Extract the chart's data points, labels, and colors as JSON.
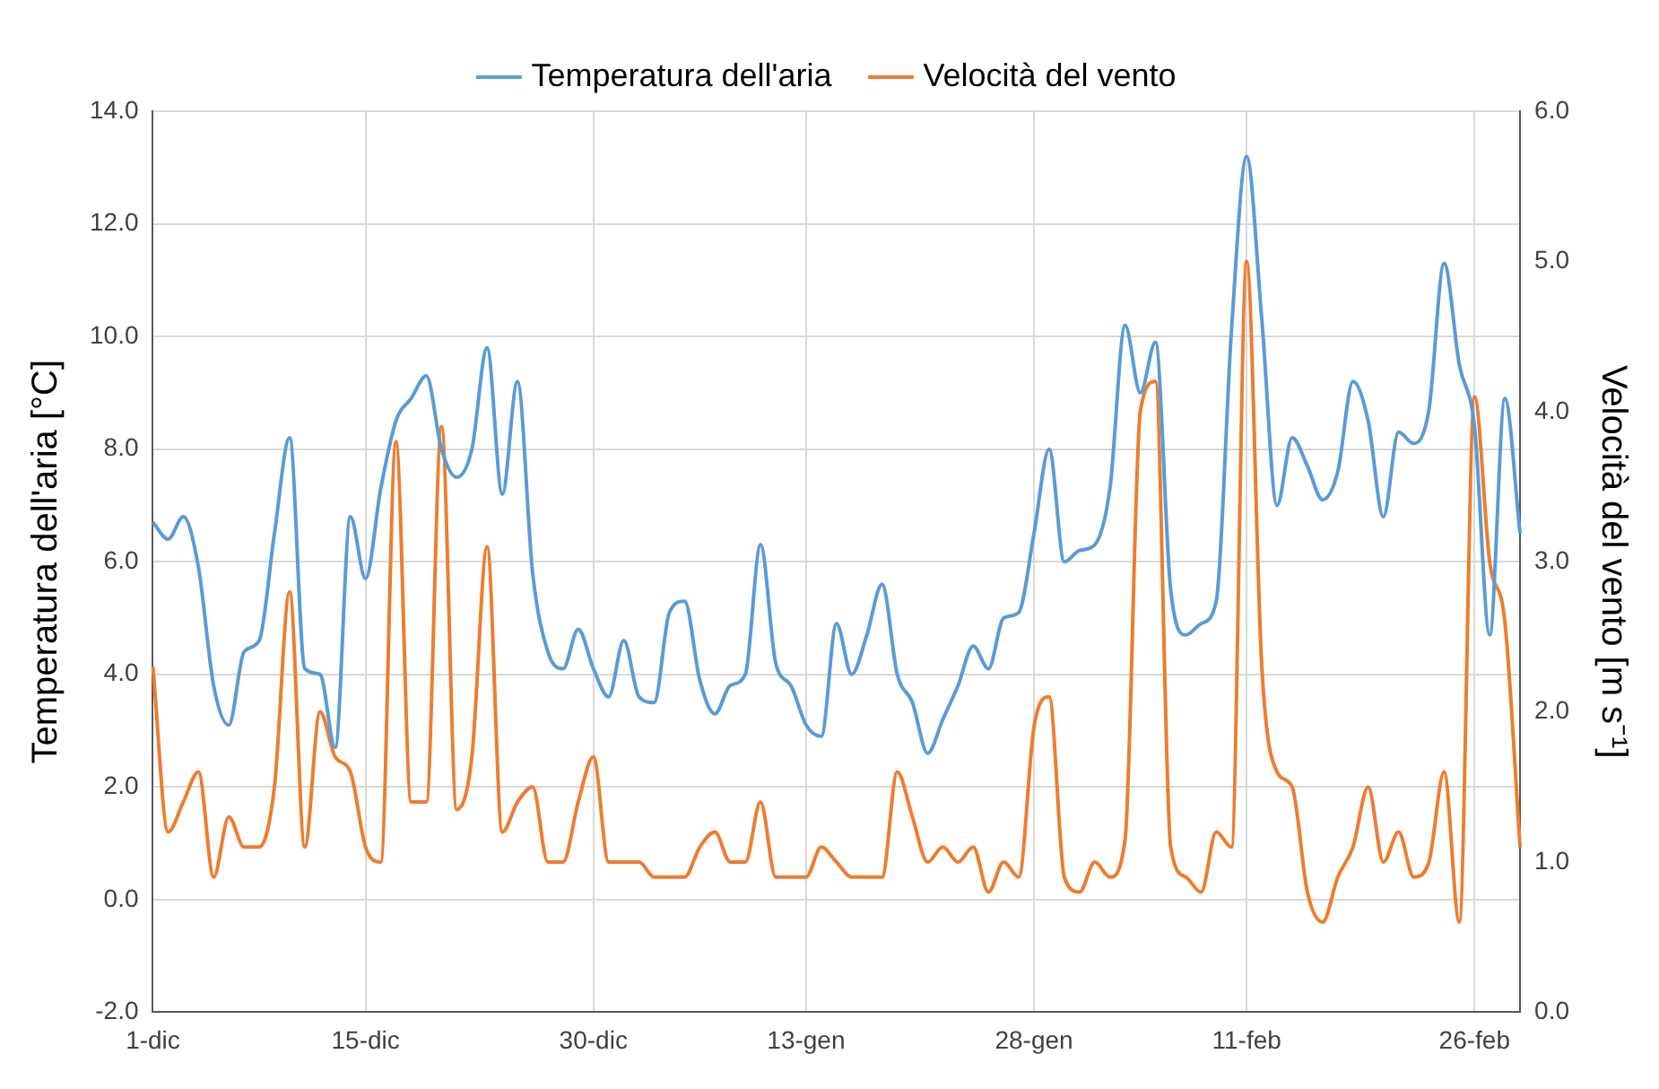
{
  "chart_data": {
    "type": "line",
    "ylabel": "Temperatura dell'aria [°C]",
    "y2label": "Velocità del vento [m s⁻¹]",
    "categories": [
      "1-dic",
      null,
      null,
      null,
      null,
      null,
      null,
      null,
      null,
      null,
      null,
      null,
      null,
      null,
      "15-dic",
      null,
      null,
      null,
      null,
      null,
      null,
      null,
      null,
      null,
      null,
      null,
      null,
      null,
      null,
      "30-dic",
      null,
      null,
      null,
      null,
      null,
      null,
      null,
      null,
      null,
      null,
      null,
      null,
      null,
      "13-gen",
      null,
      null,
      null,
      null,
      null,
      null,
      null,
      null,
      null,
      null,
      null,
      null,
      null,
      null,
      "28-gen",
      null,
      null,
      null,
      null,
      null,
      null,
      null,
      null,
      null,
      null,
      null,
      null,
      null,
      "11-feb",
      null,
      null,
      null,
      null,
      null,
      null,
      null,
      null,
      null,
      null,
      null,
      null,
      null,
      null,
      "26-feb",
      null,
      null,
      null
    ],
    "ylim": [
      -2,
      14
    ],
    "yticks": [
      {
        "value": -2,
        "label": "-2.0"
      },
      {
        "value": 0,
        "label": "0.0"
      },
      {
        "value": 2,
        "label": "2.0"
      },
      {
        "value": 4,
        "label": "4.0"
      },
      {
        "value": 6,
        "label": "6.0"
      },
      {
        "value": 8,
        "label": "8.0"
      },
      {
        "value": 10,
        "label": "10.0"
      },
      {
        "value": 12,
        "label": "12.0"
      },
      {
        "value": 14,
        "label": "14.0"
      }
    ],
    "y2lim": [
      0,
      6
    ],
    "y2ticks": [
      {
        "value": 0,
        "label": "0.0"
      },
      {
        "value": 1,
        "label": "1.0"
      },
      {
        "value": 2,
        "label": "2.0"
      },
      {
        "value": 3,
        "label": "3.0"
      },
      {
        "value": 4,
        "label": "4.0"
      },
      {
        "value": 5,
        "label": "5.0"
      },
      {
        "value": 6,
        "label": "6.0"
      }
    ],
    "grid": true,
    "legend": "top",
    "marker": "none",
    "line_style": "solid",
    "series": [
      {
        "name": "Temperatura dell'aria",
        "color": "#5b9bd5",
        "values": [
          6.7,
          6.4,
          6.8,
          5.9,
          3.8,
          3.1,
          4.4,
          4.6,
          6.5,
          8.2,
          4.1,
          4,
          2.7,
          6.8,
          5.7,
          7.3,
          8.5,
          8.9,
          9.3,
          8,
          7.5,
          8,
          9.8,
          7.2,
          9.2,
          5.8,
          4.4,
          4.1,
          4.8,
          4.1,
          3.6,
          4.6,
          3.6,
          3.5,
          5.1,
          5.3,
          3.9,
          3.3,
          3.8,
          4,
          6.3,
          4.2,
          3.8,
          3.1,
          2.9,
          4.9,
          4,
          4.7,
          5.6,
          4,
          3.5,
          2.6,
          3.2,
          3.8,
          4.5,
          4.1,
          5,
          5.1,
          6.5,
          8,
          6,
          6.2,
          6.3,
          7.3,
          10.2,
          9,
          9.9,
          5.5,
          4.7,
          4.9,
          5.3,
          10.1,
          13.2,
          10.3,
          7,
          8.2,
          7.7,
          7.1,
          7.6,
          9.2,
          8.5,
          6.8,
          8.3,
          8.1,
          8.7,
          11.3,
          9.5,
          8.4,
          4.7,
          8.9,
          6.5
        ]
      },
      {
        "name": "Velocità del vento",
        "color": "#ed7d31",
        "axis": "y2",
        "values": [
          2.3,
          1.2,
          1.4,
          1.6,
          0.9,
          1.3,
          1.1,
          1.1,
          1.5,
          2.8,
          1.1,
          2,
          1.7,
          1.6,
          1.1,
          1,
          3.8,
          1.4,
          1.4,
          3.9,
          1.35,
          1.7,
          3.1,
          1.2,
          1.4,
          1.5,
          1,
          1,
          1.4,
          1.7,
          1,
          1,
          1,
          0.9,
          0.9,
          0.9,
          1.1,
          1.2,
          1,
          1,
          1.4,
          0.9,
          0.9,
          0.9,
          1.1,
          1,
          0.9,
          0.9,
          0.9,
          1.6,
          1.3,
          1,
          1.1,
          1,
          1.1,
          0.8,
          1,
          0.9,
          1.9,
          2.1,
          0.9,
          0.8,
          1,
          0.9,
          1.15,
          4,
          4.2,
          1.1,
          0.9,
          0.8,
          1.2,
          1.1,
          5,
          2.3,
          1.6,
          1.5,
          0.8,
          0.6,
          0.9,
          1.1,
          1.5,
          1,
          1.2,
          0.9,
          1,
          1.6,
          0.6,
          4.1,
          3,
          2.6,
          1.1
        ]
      }
    ]
  }
}
